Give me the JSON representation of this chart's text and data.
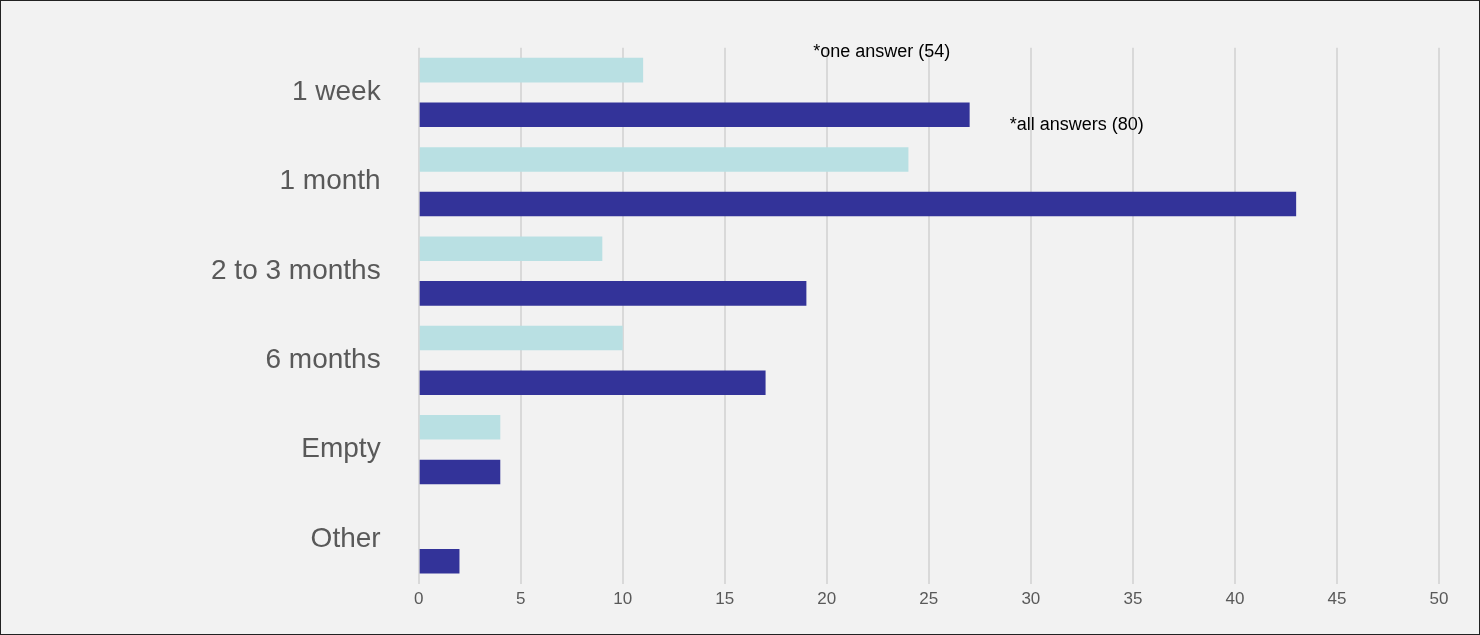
{
  "chart_data": {
    "type": "bar",
    "orientation": "horizontal",
    "categories": [
      "1 week",
      "1 month",
      "2 to 3 months",
      "6 months",
      "Empty",
      "Other"
    ],
    "series": [
      {
        "name": "*one answer (54)",
        "color": "#b9e0e3",
        "values": [
          11,
          24,
          9,
          10,
          4,
          null
        ]
      },
      {
        "name": "*all answers (80)",
        "color": "#333399",
        "values": [
          27,
          43,
          19,
          17,
          4,
          2
        ]
      }
    ],
    "xlim": [
      0,
      50
    ],
    "xticks": [
      0,
      5,
      10,
      15,
      20,
      25,
      30,
      35,
      40,
      45,
      50
    ],
    "grid": "x",
    "legend": false
  }
}
